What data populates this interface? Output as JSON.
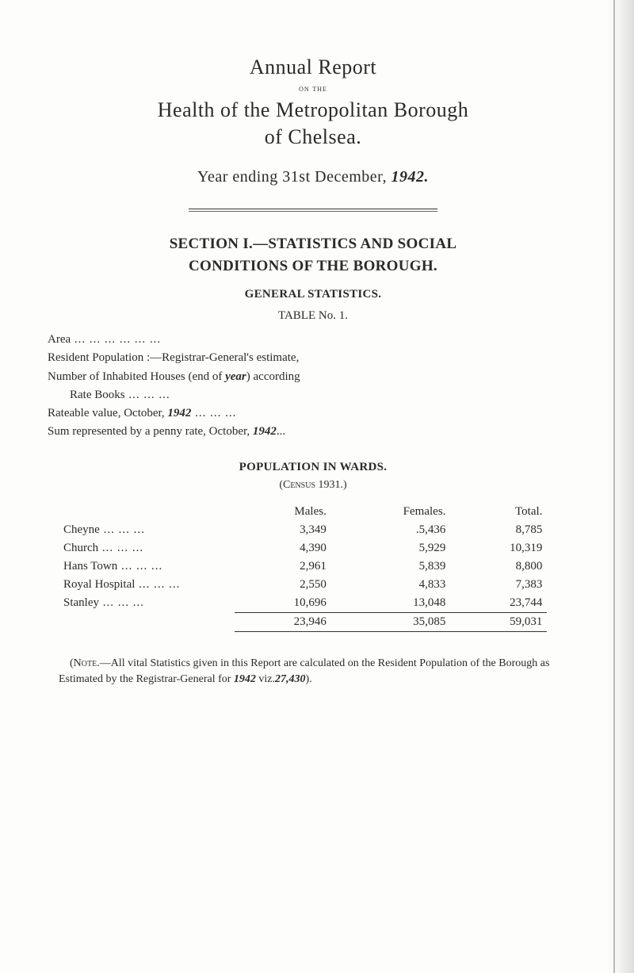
{
  "header": {
    "title1": "Annual Report",
    "on_the": "on the",
    "title2": "Health of the Metropolitan Borough",
    "title3": "of Chelsea.",
    "year_line_pre": "Year ending 31st December, ",
    "year_hand": "1942."
  },
  "section1": {
    "head": "SECTION I.—STATISTICS AND SOCIAL",
    "head2": "CONDITIONS OF THE BOROUGH.",
    "general": "GENERAL STATISTICS.",
    "table_label": "TABLE No. 1."
  },
  "stats_lines": {
    "area": "Area",
    "resident": "Resident Population :—Registrar-General's estimate,",
    "houses_pre": "Number of Inhabited Houses (end of ",
    "houses_hand": "year",
    "houses_post": ") according",
    "rate_books": "Rate Books",
    "rateable_pre": "Rateable value, October, ",
    "rateable_hand": "1942",
    "penny_pre": "Sum represented by a penny rate, October, ",
    "penny_hand": "1942",
    "penny_post": "..."
  },
  "population": {
    "head": "POPULATION IN WARDS.",
    "census": "(Census 1931.)",
    "columns": [
      "Males.",
      "Females.",
      "Total."
    ],
    "rows": [
      {
        "label": "Cheyne",
        "males": "3,349",
        "females": ".5,436",
        "total": "8,785"
      },
      {
        "label": "Church",
        "males": "4,390",
        "females": "5,929",
        "total": "10,319"
      },
      {
        "label": "Hans Town",
        "males": "2,961",
        "females": "5,839",
        "total": "8,800"
      },
      {
        "label": "Royal Hospital",
        "males": "2,550",
        "females": "4,833",
        "total": "7,383"
      },
      {
        "label": "Stanley",
        "males": "10,696",
        "females": "13,048",
        "total": "23,744"
      }
    ],
    "totals": {
      "males": "23,946",
      "females": "35,085",
      "total": "59,031"
    }
  },
  "footnote": {
    "note_label": "(Note.—",
    "body_pre": "All vital Statistics given in this Report are calculated on the Resident Population of the Borough as Estimated by the Registrar-General for ",
    "year_hand": "1942",
    "viz": " viz.",
    "viz_hand": "27,430",
    "close": ")."
  },
  "style": {
    "text_color": "#2a2a2a",
    "bg_color": "#fdfdfb"
  }
}
